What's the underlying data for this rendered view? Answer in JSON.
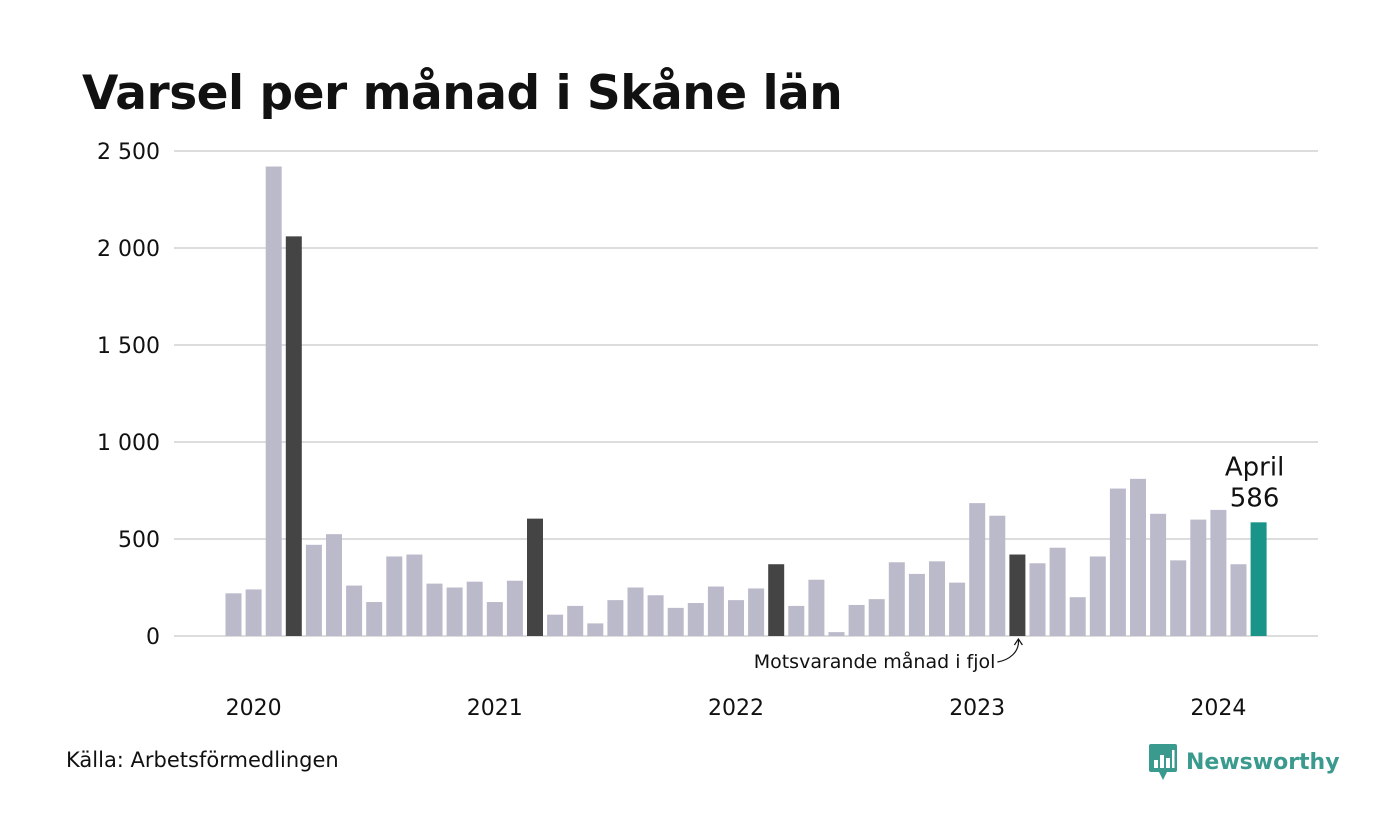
{
  "title": "Varsel per månad i Skåne län",
  "source": "Källa: Arbetsförmedlingen",
  "brand": {
    "name": "Newsworthy",
    "icon": "newsworthy-logo-icon"
  },
  "colors": {
    "default_bar": "#bbbaca",
    "comparison_bar": "#444444",
    "highlight_bar": "#1a9488",
    "grid": "#dddddd",
    "text": "#111111",
    "brand": "#3a9a8e"
  },
  "chart_data": {
    "type": "bar",
    "title": "Varsel per månad i Skåne län",
    "xlabel": "",
    "ylabel": "",
    "ylim": [
      0,
      2500
    ],
    "grid": true,
    "yticks": [
      {
        "value": 0,
        "label": "0"
      },
      {
        "value": 500,
        "label": "500"
      },
      {
        "value": 1000,
        "label": "1 000"
      },
      {
        "value": 1500,
        "label": "1 500"
      },
      {
        "value": 2000,
        "label": "2 000"
      },
      {
        "value": 2500,
        "label": "2 500"
      }
    ],
    "year_labels": [
      {
        "label": "2020",
        "index": 1
      },
      {
        "label": "2021",
        "index": 13
      },
      {
        "label": "2022",
        "index": 25
      },
      {
        "label": "2023",
        "index": 37
      },
      {
        "label": "2024",
        "index": 49
      }
    ],
    "months": [
      "2020-01",
      "2020-02",
      "2020-03",
      "2020-04",
      "2020-05",
      "2020-06",
      "2020-07",
      "2020-08",
      "2020-09",
      "2020-10",
      "2020-11",
      "2020-12",
      "2021-01",
      "2021-02",
      "2021-03",
      "2021-04",
      "2021-05",
      "2021-06",
      "2021-07",
      "2021-08",
      "2021-09",
      "2021-10",
      "2021-11",
      "2021-12",
      "2022-01",
      "2022-02",
      "2022-03",
      "2022-04",
      "2022-05",
      "2022-06",
      "2022-07",
      "2022-08",
      "2022-09",
      "2022-10",
      "2022-11",
      "2022-12",
      "2023-01",
      "2023-02",
      "2023-03",
      "2023-04",
      "2023-05",
      "2023-06",
      "2023-07",
      "2023-08",
      "2023-09",
      "2023-10",
      "2023-11",
      "2023-12",
      "2024-01",
      "2024-02",
      "2024-03",
      "2024-04"
    ],
    "values": [
      220,
      240,
      2420,
      2060,
      470,
      525,
      260,
      175,
      410,
      420,
      270,
      250,
      280,
      175,
      285,
      605,
      110,
      155,
      65,
      185,
      250,
      210,
      145,
      170,
      255,
      185,
      245,
      370,
      155,
      290,
      20,
      160,
      190,
      380,
      320,
      385,
      275,
      685,
      620,
      420,
      375,
      455,
      200,
      410,
      760,
      810,
      630,
      390,
      600,
      650,
      370,
      586
    ],
    "comparison_indices": [
      3,
      15,
      27,
      39
    ],
    "highlight_index": 51,
    "annotations": {
      "latest_month": "April",
      "latest_value": "586",
      "comparison_note": "Motsvarande månad i fjol"
    }
  }
}
